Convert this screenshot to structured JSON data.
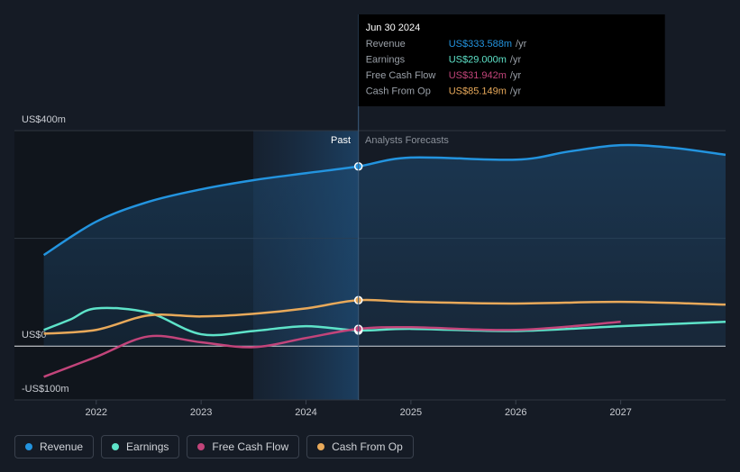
{
  "chart_data": {
    "type": "line",
    "xlim": [
      2021.22,
      2028
    ],
    "xticks": [
      2022,
      2023,
      2024,
      2025,
      2026,
      2027
    ],
    "ylim": [
      -100,
      400
    ],
    "yticks": [
      {
        "value": -100,
        "label": "-US$100m"
      },
      {
        "value": 0,
        "label": "US$0"
      },
      {
        "value": 200,
        "label": null
      },
      {
        "value": 400,
        "label": "US$400m"
      }
    ],
    "grid": true,
    "annotations": {
      "past": "Past",
      "forecast": "Analysts Forecasts"
    },
    "series": [
      {
        "name": "Revenue",
        "color": "#2394df",
        "x": [
          2021.5,
          2022,
          2022.5,
          2023,
          2023.5,
          2024,
          2024.5,
          2025,
          2026,
          2026.5,
          2027,
          2027.5,
          2028
        ],
        "values": [
          169,
          231,
          268,
          291,
          308,
          321,
          333.588,
          350,
          346,
          361,
          373,
          368,
          355
        ]
      },
      {
        "name": "Earnings",
        "color": "#5ee3c9",
        "x": [
          2021.5,
          2021.75,
          2022,
          2022.5,
          2023,
          2023.5,
          2024,
          2024.5,
          2025,
          2026,
          2027,
          2028
        ],
        "values": [
          30,
          49,
          70,
          62,
          22,
          28,
          37,
          29,
          32,
          28,
          37,
          45
        ]
      },
      {
        "name": "Free Cash Flow",
        "color": "#c2447a",
        "x": [
          2021.5,
          2022,
          2022.5,
          2023,
          2023.5,
          2024,
          2024.5,
          2025,
          2026,
          2027
        ],
        "values": [
          -57,
          -20,
          18,
          7,
          -2,
          15,
          31.942,
          35,
          30,
          45
        ]
      },
      {
        "name": "Cash From Op",
        "color": "#e8a95a",
        "x": [
          2021.5,
          2022,
          2022.5,
          2023,
          2023.5,
          2024,
          2024.5,
          2025,
          2026,
          2027,
          2028
        ],
        "values": [
          23,
          30,
          57,
          55,
          60,
          70,
          85.149,
          82,
          79,
          82,
          77
        ]
      }
    ],
    "tooltip": {
      "x": 2024.5,
      "title": "Jun 30 2024",
      "rows": [
        {
          "name": "Revenue",
          "value_label": "US$333.588m",
          "unit": "/yr"
        },
        {
          "name": "Earnings",
          "value_label": "US$29.000m",
          "unit": "/yr"
        },
        {
          "name": "Free Cash Flow",
          "value_label": "US$31.942m",
          "unit": "/yr"
        },
        {
          "name": "Cash From Op",
          "value_label": "US$85.149m",
          "unit": "/yr"
        }
      ]
    }
  }
}
